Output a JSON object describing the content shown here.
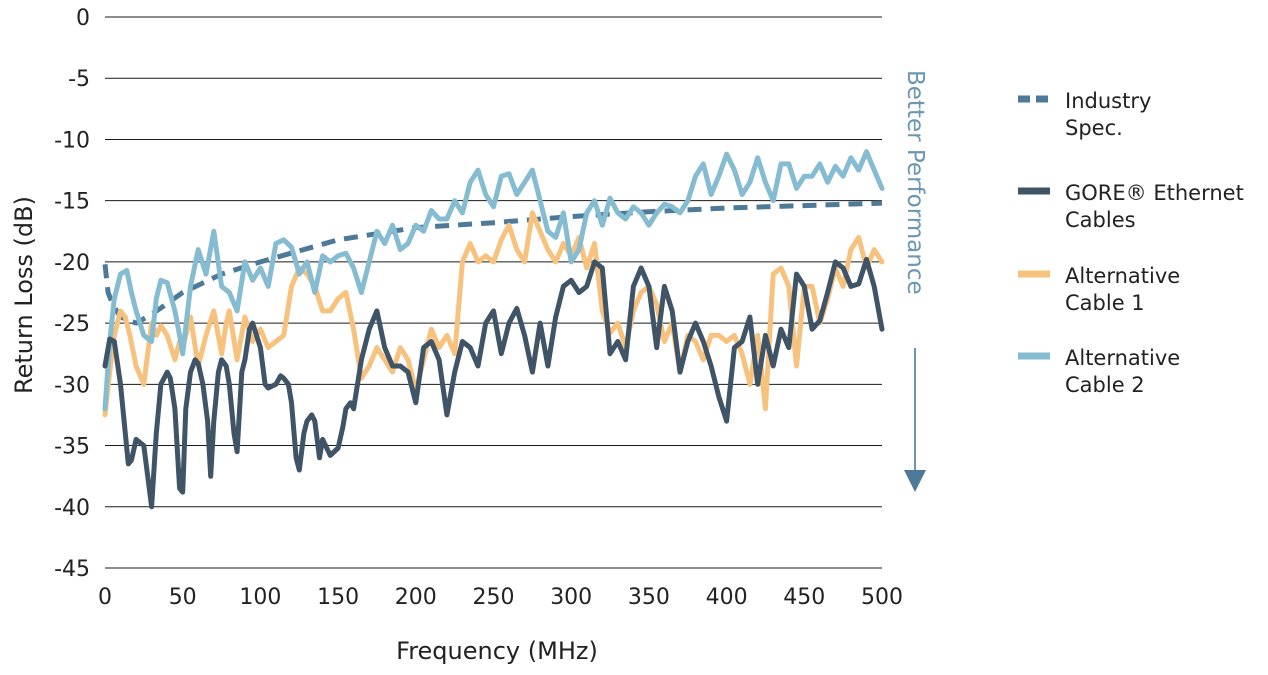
{
  "chart_data": {
    "type": "line",
    "xlabel": "Frequency (MHz)",
    "ylabel": "Return Loss (dB)",
    "xlim": [
      0,
      500
    ],
    "ylim": [
      -45,
      0
    ],
    "x_ticks": [
      0,
      50,
      100,
      150,
      200,
      250,
      300,
      350,
      400,
      450,
      500
    ],
    "y_ticks": [
      0,
      -5,
      -10,
      -15,
      -20,
      -25,
      -30,
      -35,
      -40,
      -45
    ],
    "x_tick_labels": [
      "0",
      "50",
      "100",
      "150",
      "200",
      "250",
      "300",
      "350",
      "400",
      "450",
      "500"
    ],
    "y_tick_labels": [
      "0",
      "-5",
      "-10",
      "-15",
      "-20",
      "-25",
      "-30",
      "-35",
      "-40",
      "-45"
    ],
    "grid": "horizontal",
    "legend_position": "right",
    "annotation": {
      "text": "Better Performance",
      "direction": "down"
    },
    "series": [
      {
        "name": "Industry Spec.",
        "color": "#4d7a99",
        "style": "dashed",
        "x": [
          0,
          2,
          5,
          10,
          20,
          30,
          50,
          75,
          100,
          150,
          200,
          250,
          300,
          350,
          400,
          450,
          500
        ],
        "y": [
          -20.2,
          -22.5,
          -23.5,
          -24.5,
          -25,
          -24.3,
          -22.5,
          -21,
          -20,
          -18.2,
          -17.2,
          -16.8,
          -16.3,
          -15.9,
          -15.6,
          -15.4,
          -15.2
        ]
      },
      {
        "name": "GORE® Ethernet Cables",
        "color": "#3f5466",
        "style": "solid",
        "x": [
          0,
          3,
          6,
          10,
          15,
          17,
          20,
          25,
          28,
          30,
          33,
          36,
          40,
          42,
          45,
          48,
          50,
          52,
          55,
          58,
          60,
          63,
          66,
          68,
          70,
          73,
          75,
          78,
          80,
          83,
          85,
          88,
          90,
          93,
          95,
          100,
          103,
          105,
          110,
          113,
          115,
          118,
          120,
          123,
          125,
          128,
          130,
          133,
          135,
          138,
          140,
          145,
          150,
          153,
          155,
          158,
          160,
          165,
          170,
          175,
          180,
          185,
          190,
          195,
          200,
          205,
          210,
          215,
          220,
          225,
          230,
          235,
          240,
          245,
          250,
          255,
          260,
          265,
          270,
          275,
          280,
          285,
          290,
          295,
          300,
          305,
          310,
          315,
          320,
          325,
          330,
          335,
          340,
          345,
          350,
          355,
          360,
          365,
          370,
          375,
          380,
          385,
          390,
          395,
          400,
          405,
          410,
          415,
          420,
          425,
          430,
          435,
          440,
          445,
          450,
          455,
          460,
          465,
          470,
          475,
          480,
          485,
          490,
          495,
          500
        ],
        "y": [
          -28.5,
          -26.3,
          -26.5,
          -30,
          -36.5,
          -36.2,
          -34.5,
          -35,
          -38,
          -40,
          -34,
          -30,
          -29,
          -29.5,
          -32,
          -38.5,
          -38.8,
          -32,
          -29,
          -28,
          -28.3,
          -30,
          -33,
          -37.5,
          -33,
          -29,
          -28,
          -28.5,
          -30,
          -34,
          -35.5,
          -29,
          -28,
          -25.5,
          -25,
          -27,
          -30,
          -30.3,
          -30,
          -29.3,
          -29.5,
          -30,
          -31.5,
          -36,
          -37,
          -34,
          -33,
          -32.5,
          -33,
          -36,
          -34.5,
          -35.8,
          -35.2,
          -33.5,
          -32,
          -31.5,
          -32,
          -28,
          -25.5,
          -24,
          -27,
          -28.5,
          -28.5,
          -29,
          -31.5,
          -27,
          -26.5,
          -28,
          -32.5,
          -29,
          -26.5,
          -27,
          -28.5,
          -25,
          -24,
          -27.5,
          -25,
          -23.8,
          -26,
          -29,
          -25,
          -28.5,
          -24.5,
          -22,
          -21.5,
          -22.5,
          -22,
          -20,
          -20.5,
          -27.5,
          -26.5,
          -28,
          -22,
          -20.5,
          -22,
          -27,
          -22,
          -24,
          -29,
          -26.5,
          -25,
          -26.5,
          -28.5,
          -31,
          -33,
          -27,
          -26.5,
          -24.5,
          -30,
          -26,
          -28.5,
          -25.5,
          -27,
          -21,
          -22,
          -25.5,
          -24.8,
          -22.5,
          -20,
          -20.5,
          -22,
          -21.8,
          -19.8,
          -22,
          -25.5
        ]
      },
      {
        "name": "Alternative Cable 1",
        "color": "#f7c27e",
        "style": "solid",
        "x": [
          0,
          3,
          6,
          10,
          13,
          16,
          20,
          25,
          30,
          33,
          36,
          40,
          45,
          48,
          50,
          55,
          60,
          65,
          70,
          75,
          78,
          80,
          85,
          90,
          95,
          100,
          105,
          110,
          115,
          120,
          125,
          130,
          135,
          140,
          145,
          150,
          155,
          160,
          165,
          170,
          175,
          180,
          185,
          190,
          195,
          200,
          205,
          210,
          215,
          220,
          225,
          230,
          235,
          240,
          245,
          250,
          255,
          260,
          265,
          270,
          275,
          280,
          285,
          290,
          295,
          300,
          305,
          310,
          315,
          320,
          325,
          330,
          335,
          340,
          345,
          350,
          355,
          360,
          365,
          370,
          375,
          380,
          385,
          390,
          395,
          400,
          405,
          410,
          415,
          420,
          425,
          430,
          435,
          440,
          445,
          450,
          455,
          460,
          465,
          470,
          475,
          480,
          485,
          490,
          495,
          500
        ],
        "y": [
          -32.5,
          -29,
          -26,
          -24,
          -24.5,
          -26,
          -28.5,
          -30,
          -25,
          -26,
          -25.2,
          -26,
          -28,
          -26.5,
          -27,
          -24.5,
          -28.5,
          -26,
          -24,
          -27.5,
          -25,
          -24,
          -28,
          -24.5,
          -26.5,
          -25.5,
          -27,
          -26.5,
          -26,
          -22,
          -20.5,
          -21,
          -22,
          -24,
          -24,
          -23,
          -22.5,
          -25.5,
          -29.5,
          -28.5,
          -27,
          -28,
          -29,
          -27,
          -28,
          -30.5,
          -28,
          -25.5,
          -27,
          -26,
          -27.5,
          -20,
          -18.5,
          -20,
          -19.5,
          -20,
          -18.2,
          -17,
          -19,
          -20,
          -16,
          -17.5,
          -19,
          -20,
          -18.5,
          -19.5,
          -18,
          -20.5,
          -18.5,
          -24,
          -25.8,
          -25,
          -27,
          -24,
          -22.5,
          -22,
          -23.5,
          -26.5,
          -25,
          -29,
          -26,
          -26.5,
          -28,
          -26,
          -26,
          -26.5,
          -26,
          -27.5,
          -30,
          -26,
          -32,
          -21,
          -20.5,
          -22,
          -28.5,
          -22,
          -22,
          -25,
          -23,
          -20.5,
          -22,
          -19,
          -18,
          -20.5,
          -19,
          -20
        ]
      },
      {
        "name": "Alternative Cable 2",
        "color": "#86bcd1",
        "style": "solid",
        "x": [
          0,
          3,
          6,
          10,
          14,
          17,
          20,
          25,
          30,
          33,
          36,
          40,
          45,
          48,
          50,
          55,
          60,
          65,
          70,
          75,
          80,
          85,
          90,
          95,
          100,
          105,
          110,
          115,
          120,
          125,
          130,
          135,
          140,
          145,
          150,
          155,
          160,
          165,
          170,
          175,
          180,
          185,
          190,
          195,
          200,
          205,
          210,
          215,
          220,
          225,
          230,
          235,
          240,
          245,
          250,
          255,
          260,
          265,
          270,
          275,
          280,
          285,
          290,
          295,
          300,
          305,
          310,
          315,
          320,
          325,
          330,
          335,
          340,
          345,
          350,
          355,
          360,
          365,
          370,
          375,
          380,
          385,
          390,
          395,
          400,
          405,
          410,
          415,
          420,
          425,
          430,
          435,
          440,
          445,
          450,
          455,
          460,
          465,
          470,
          475,
          480,
          485,
          490,
          495,
          500
        ],
        "y": [
          -32,
          -26.5,
          -23,
          -21,
          -20.7,
          -22.5,
          -24,
          -26,
          -26.5,
          -23,
          -21.5,
          -21.7,
          -24,
          -26,
          -27.5,
          -22,
          -19,
          -21,
          -17.5,
          -22,
          -22.5,
          -24,
          -20,
          -21.5,
          -20.5,
          -22,
          -18.5,
          -18.2,
          -18.8,
          -21,
          -20,
          -22.5,
          -19.5,
          -20,
          -19.5,
          -19.3,
          -20.5,
          -22.5,
          -20,
          -17.5,
          -18.5,
          -17,
          -19,
          -18.5,
          -17,
          -17.5,
          -15.8,
          -16.5,
          -16.5,
          -15,
          -16,
          -13.5,
          -12.5,
          -14.5,
          -15.5,
          -13,
          -12.8,
          -14.5,
          -13.5,
          -12.5,
          -15,
          -17.5,
          -18,
          -16,
          -20,
          -19,
          -16,
          -15,
          -17,
          -14.8,
          -16,
          -16.5,
          -15.5,
          -16,
          -17,
          -16,
          -15.3,
          -15.5,
          -16,
          -15,
          -13,
          -12,
          -14.5,
          -13,
          -11.2,
          -12.5,
          -14.5,
          -13.5,
          -11.5,
          -13.5,
          -15,
          -12,
          -12,
          -14,
          -13,
          -13,
          -12,
          -13.5,
          -12.2,
          -13,
          -11.5,
          -12.5,
          -11,
          -12.5,
          -14
        ]
      }
    ]
  }
}
